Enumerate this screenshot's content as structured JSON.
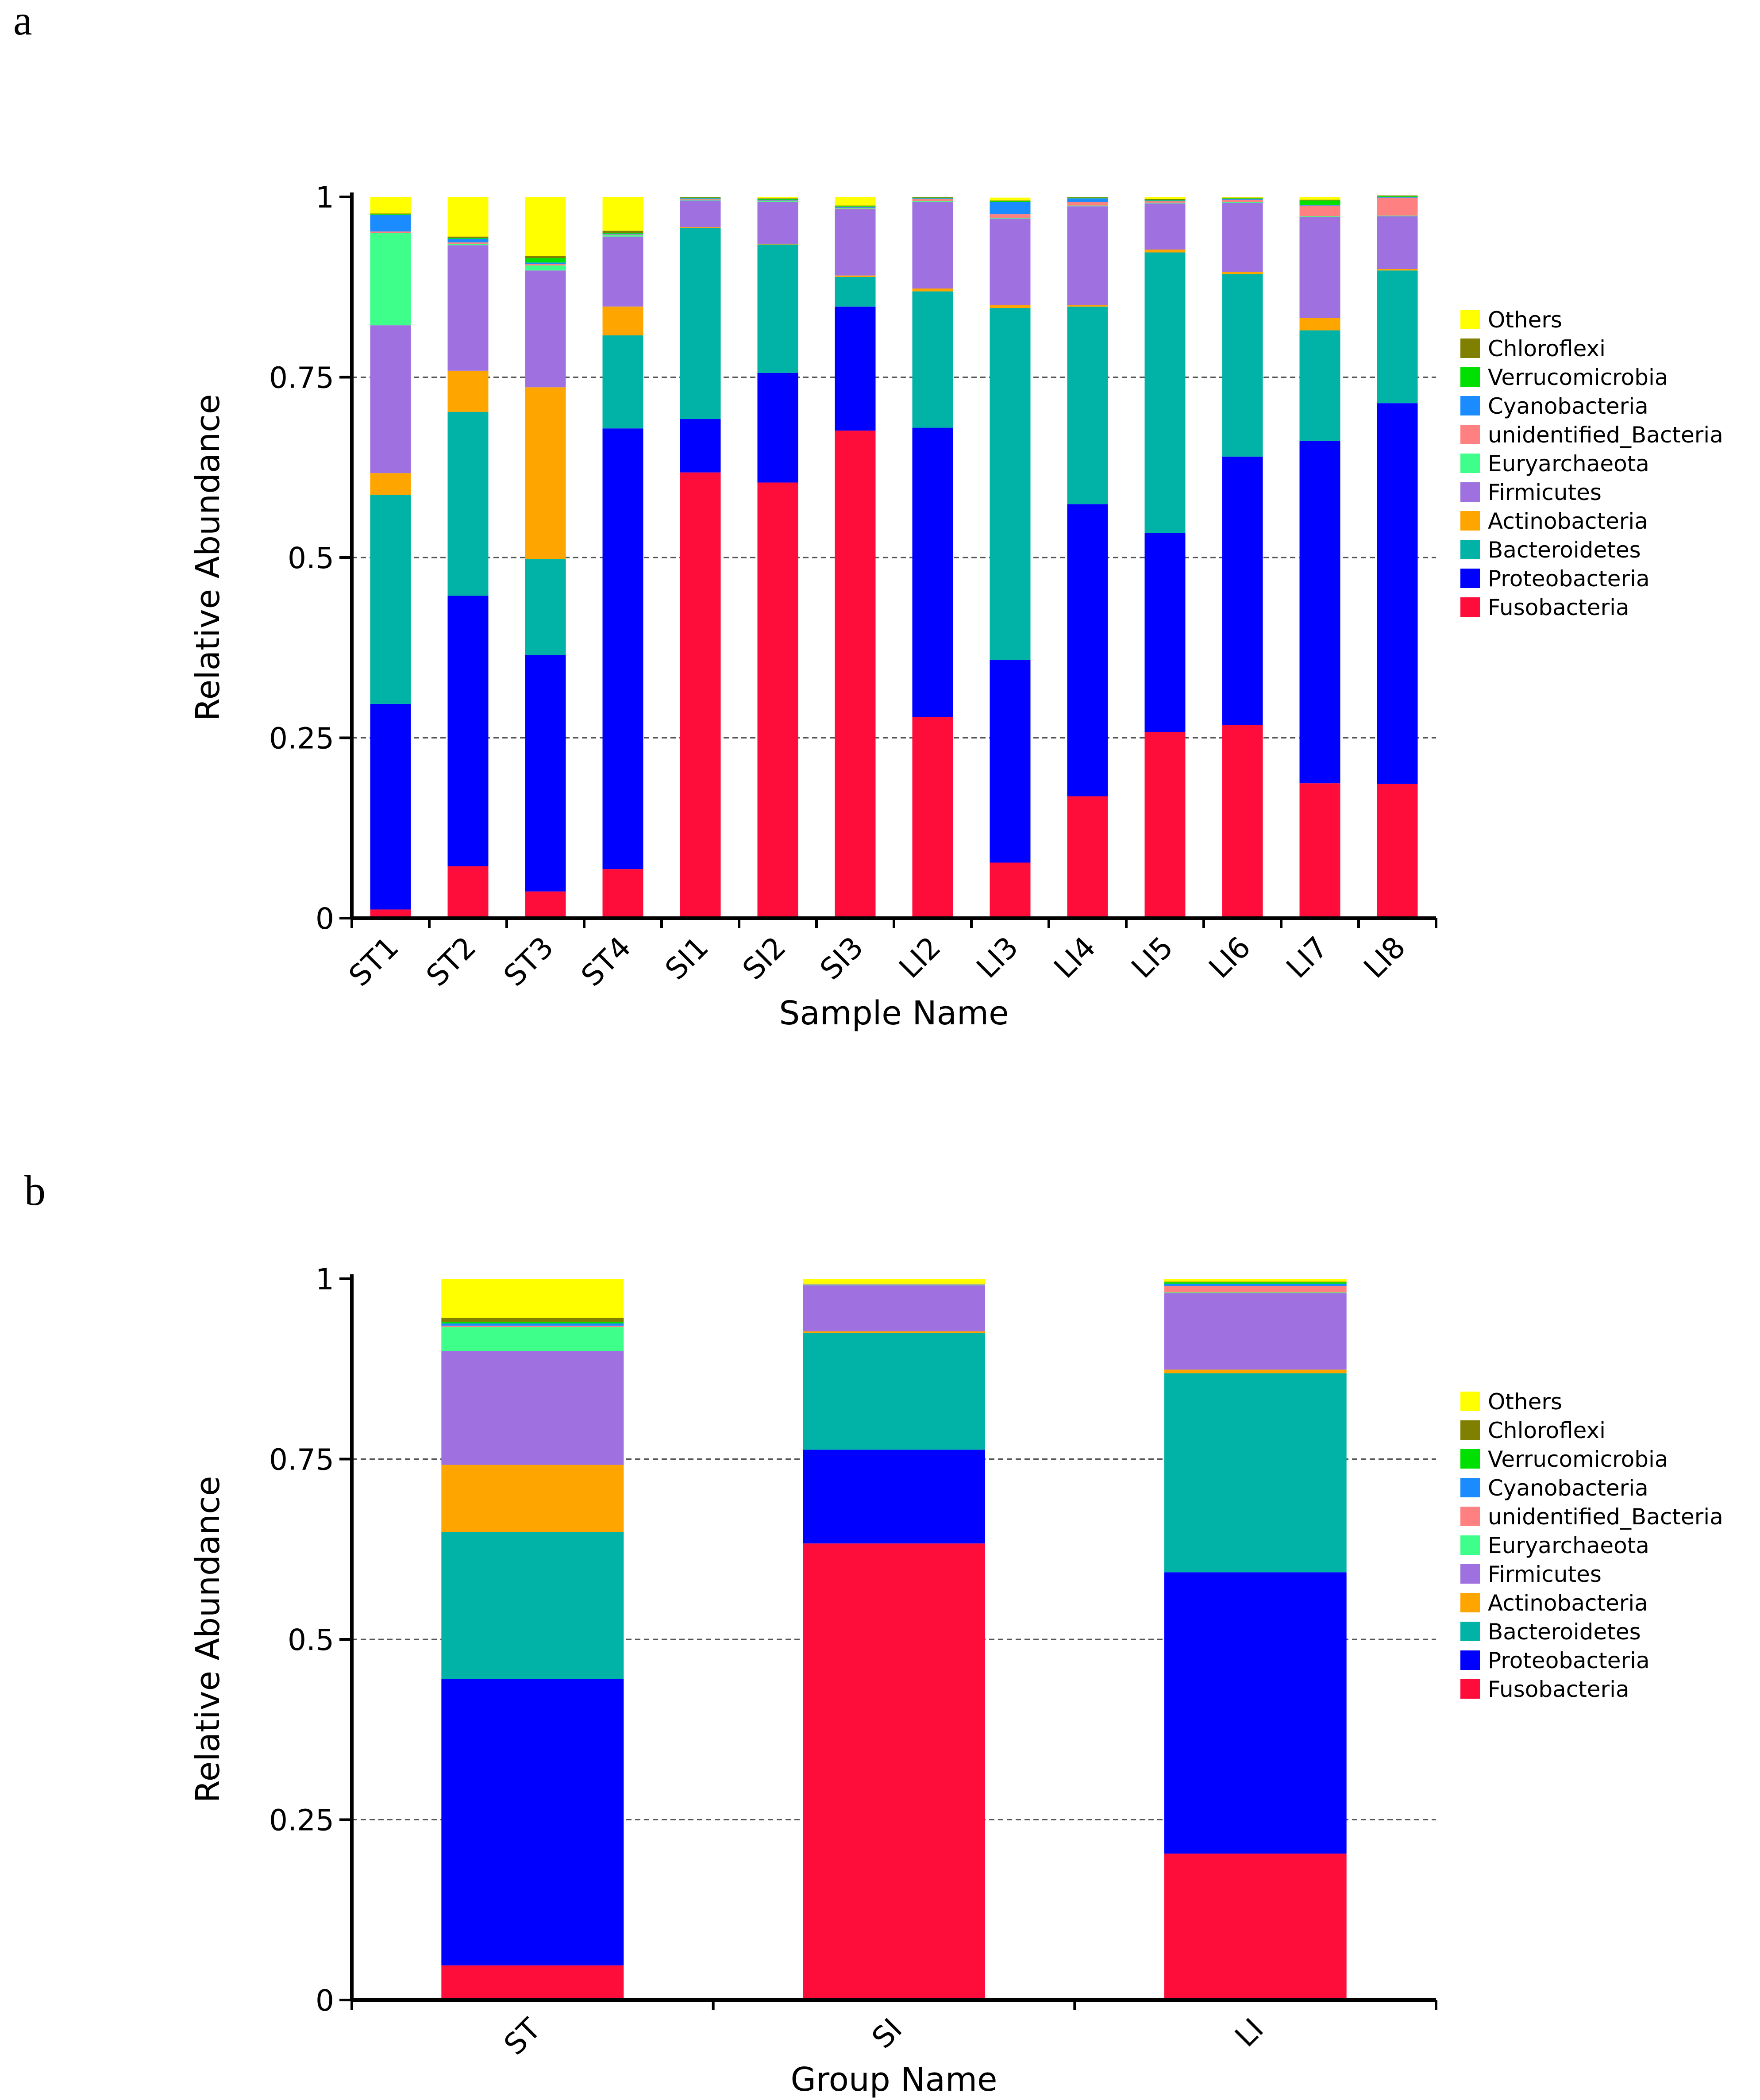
{
  "panels": [
    {
      "label": "a"
    },
    {
      "label": "b"
    }
  ],
  "legend": {
    "phyla": [
      "Others",
      "Chloroflexi",
      "Verrucomicrobia",
      "Cyanobacteria",
      "unidentified_Bacteria",
      "Euryarchaeota",
      "Firmicutes",
      "Actinobacteria",
      "Bacteroidetes",
      "Proteobacteria",
      "Fusobacteria"
    ]
  },
  "colors": {
    "Fusobacteria": "#ff0d3a",
    "Proteobacteria": "#0000ff",
    "Bacteroidetes": "#00b3a6",
    "Actinobacteria": "#ffa500",
    "Firmicutes": "#9e70e0",
    "Euryarchaeota": "#3dff8a",
    "unidentified_Bacteria": "#ff8080",
    "Cyanobacteria": "#1a8cff",
    "Verrucomicrobia": "#00e000",
    "Chloroflexi": "#808000",
    "Others": "#ffff00"
  },
  "chart_data": [
    {
      "type": "bar",
      "stacked": true,
      "xlabel": "Sample Name",
      "ylabel": "Relative Abundance",
      "ylim": [
        0,
        1
      ],
      "yticks": [
        "0",
        "0.25",
        "0.5",
        "0.75",
        "1"
      ],
      "grid": "dashed horizontal at 0.25, 0.5, 0.75",
      "legend_position": "right",
      "categories": [
        "ST1",
        "ST2",
        "ST3",
        "ST4",
        "SI1",
        "SI2",
        "SI3",
        "LI2",
        "LI3",
        "LI4",
        "LI5",
        "LI6",
        "LI7",
        "LI8"
      ],
      "series": [
        {
          "name": "Fusobacteria",
          "values": [
            0.012,
            0.072,
            0.037,
            0.068,
            0.618,
            0.604,
            0.676,
            0.279,
            0.077,
            0.169,
            0.258,
            0.268,
            0.187,
            0.186
          ]
        },
        {
          "name": "Proteobacteria",
          "values": [
            0.285,
            0.375,
            0.328,
            0.611,
            0.074,
            0.152,
            0.172,
            0.401,
            0.281,
            0.405,
            0.276,
            0.372,
            0.475,
            0.528
          ]
        },
        {
          "name": "Bacteroidetes",
          "values": [
            0.29,
            0.255,
            0.133,
            0.129,
            0.265,
            0.178,
            0.041,
            0.189,
            0.488,
            0.274,
            0.389,
            0.253,
            0.153,
            0.184
          ]
        },
        {
          "name": "Actinobacteria",
          "values": [
            0.03,
            0.057,
            0.238,
            0.04,
            0.001,
            0.001,
            0.002,
            0.004,
            0.004,
            0.002,
            0.004,
            0.003,
            0.017,
            0.002
          ]
        },
        {
          "name": "Firmicutes",
          "values": [
            0.205,
            0.174,
            0.162,
            0.097,
            0.037,
            0.058,
            0.092,
            0.12,
            0.12,
            0.137,
            0.064,
            0.096,
            0.14,
            0.073
          ]
        },
        {
          "name": "Euryarchaeota",
          "values": [
            0.128,
            0.002,
            0.007,
            0.002,
            0.001,
            0.001,
            0.001,
            0.001,
            0.001,
            0.001,
            0.001,
            0.001,
            0.001,
            0.001
          ]
        },
        {
          "name": "unidentified_Bacteria",
          "values": [
            0.002,
            0.002,
            0.002,
            0.001,
            0.001,
            0.001,
            0.001,
            0.003,
            0.005,
            0.005,
            0.002,
            0.003,
            0.015,
            0.025
          ]
        },
        {
          "name": "Cyanobacteria",
          "values": [
            0.023,
            0.005,
            0.002,
            0.001,
            0.001,
            0.001,
            0.001,
            0.001,
            0.017,
            0.005,
            0.001,
            0.001,
            0.001,
            0.001
          ]
        },
        {
          "name": "Verrucomicrobia",
          "values": [
            0.001,
            0.001,
            0.006,
            0.001,
            0.001,
            0.001,
            0.001,
            0.001,
            0.001,
            0.001,
            0.001,
            0.001,
            0.006,
            0.001
          ]
        },
        {
          "name": "Chloroflexi",
          "values": [
            0.001,
            0.002,
            0.003,
            0.003,
            0.001,
            0.001,
            0.001,
            0.001,
            0.001,
            0.001,
            0.001,
            0.001,
            0.001,
            0.001
          ]
        },
        {
          "name": "Others",
          "values": [
            0.023,
            0.055,
            0.082,
            0.047,
            0.0,
            0.002,
            0.012,
            0.0,
            0.004,
            0.0,
            0.003,
            0.001,
            0.004,
            0.0
          ]
        }
      ]
    },
    {
      "type": "bar",
      "stacked": true,
      "xlabel": "Group Name",
      "ylabel": "Relative Abundance",
      "ylim": [
        0,
        1
      ],
      "yticks": [
        "0",
        "0.25",
        "0.5",
        "0.75",
        "1"
      ],
      "grid": "dashed horizontal at 0.25, 0.5, 0.75",
      "legend_position": "right",
      "categories": [
        "ST",
        "SI",
        "LI"
      ],
      "series": [
        {
          "name": "Fusobacteria",
          "values": [
            0.048,
            0.633,
            0.203
          ]
        },
        {
          "name": "Proteobacteria",
          "values": [
            0.397,
            0.13,
            0.39
          ]
        },
        {
          "name": "Bacteroidetes",
          "values": [
            0.204,
            0.162,
            0.276
          ]
        },
        {
          "name": "Actinobacteria",
          "values": [
            0.093,
            0.002,
            0.005
          ]
        },
        {
          "name": "Firmicutes",
          "values": [
            0.158,
            0.064,
            0.106
          ]
        },
        {
          "name": "Euryarchaeota",
          "values": [
            0.033,
            0.001,
            0.001
          ]
        },
        {
          "name": "unidentified_Bacteria",
          "values": [
            0.002,
            0.001,
            0.009
          ]
        },
        {
          "name": "Cyanobacteria",
          "values": [
            0.003,
            0.0,
            0.003
          ]
        },
        {
          "name": "Verrucomicrobia",
          "values": [
            0.002,
            0.0,
            0.002
          ]
        },
        {
          "name": "Chloroflexi",
          "values": [
            0.006,
            0.0,
            0.001
          ]
        },
        {
          "name": "Others",
          "values": [
            0.054,
            0.007,
            0.004
          ]
        }
      ]
    }
  ]
}
